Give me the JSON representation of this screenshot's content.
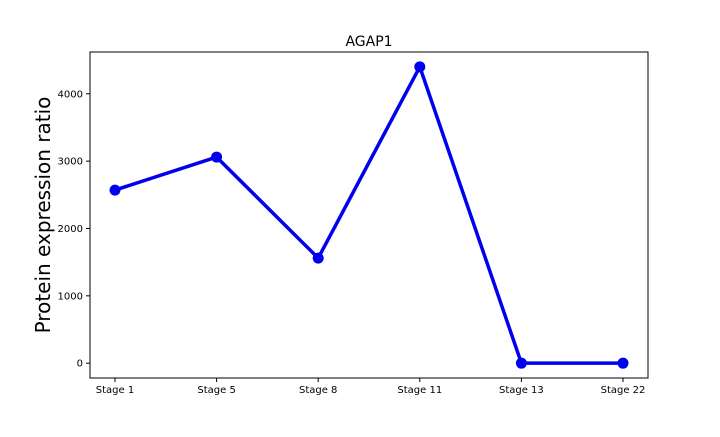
{
  "chart_data": {
    "type": "line",
    "title": "AGAP1",
    "xlabel": "",
    "ylabel": "Protein expression ratio",
    "categories": [
      "Stage 1",
      "Stage 5",
      "Stage 8",
      "Stage 11",
      "Stage 13",
      "Stage 22"
    ],
    "series": [
      {
        "values": [
          2570,
          3060,
          1560,
          4400,
          0,
          0
        ]
      }
    ],
    "ylim": [
      -220,
      4620
    ],
    "yticks": [
      0,
      1000,
      2000,
      3000,
      4000
    ],
    "grid": false,
    "legend": false,
    "line_color": "#0000ee"
  }
}
